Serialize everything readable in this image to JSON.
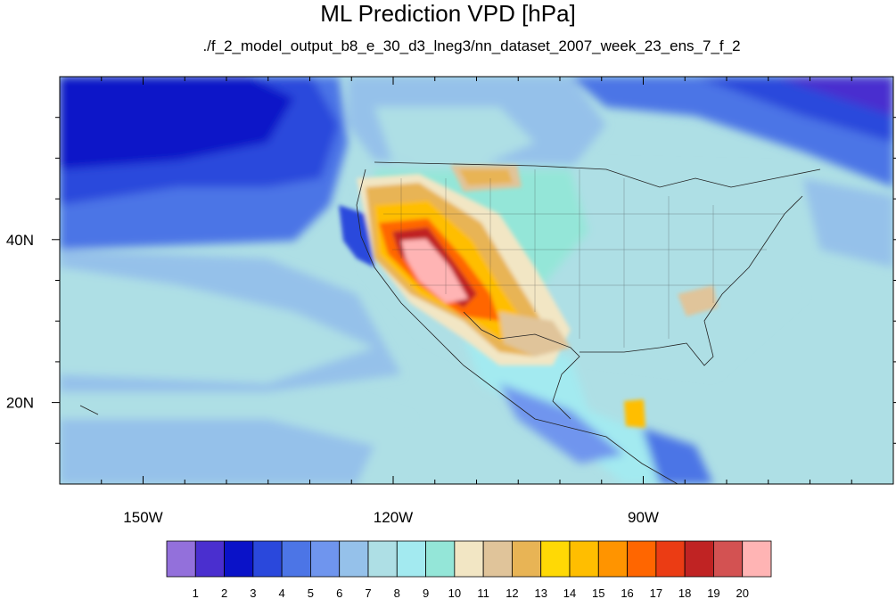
{
  "title": "ML Prediction VPD [hPa]",
  "subtitle": "./f_2_model_output_b8_e_30_d3_lneg3/nn_dataset_2007_week_23_ens_7_f_2",
  "map": {
    "lon_range": [
      -160,
      -60
    ],
    "lat_range": [
      10,
      60
    ],
    "lon_ticks": [
      {
        "value": -150,
        "label": "150W"
      },
      {
        "value": -120,
        "label": "120W"
      },
      {
        "value": -90,
        "label": "90W"
      }
    ],
    "lat_ticks": [
      {
        "value": 40,
        "label": "40N"
      },
      {
        "value": 20,
        "label": "20N"
      }
    ]
  },
  "colorbar": {
    "labels": [
      "1",
      "2",
      "3",
      "4",
      "5",
      "6",
      "7",
      "8",
      "9",
      "10",
      "11",
      "12",
      "13",
      "14",
      "15",
      "16",
      "17",
      "18",
      "19",
      "20"
    ],
    "colors": [
      "#9370db",
      "#4a2fcf",
      "#0a12c8",
      "#2a48dc",
      "#4c75e6",
      "#6f95ee",
      "#95c1ea",
      "#aedfe5",
      "#a3eaf0",
      "#94e6d8",
      "#f2e6c4",
      "#e0c49a",
      "#e8b455",
      "#ffd905",
      "#ffbe00",
      "#ff9400",
      "#ff6600",
      "#eb3c14",
      "#c02323",
      "#d35252",
      "#ffb4b4"
    ]
  }
}
